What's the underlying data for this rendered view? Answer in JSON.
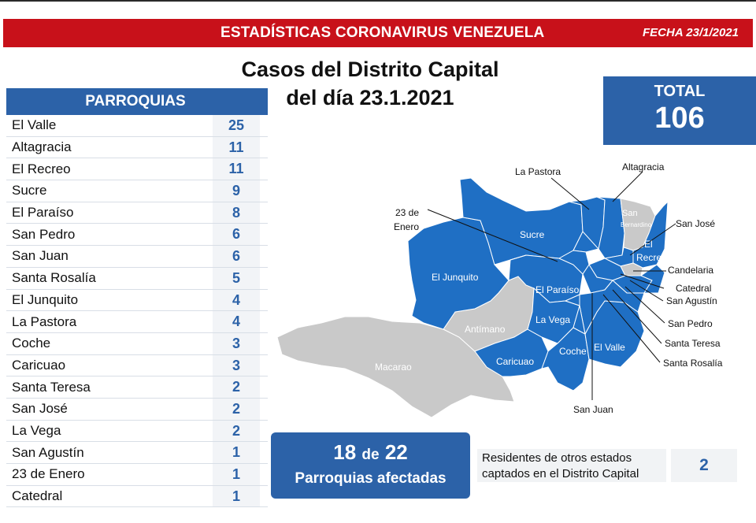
{
  "header": {
    "title": "ESTADÍSTICAS CORONAVIRUS VENEZUELA",
    "date": "FECHA 23/1/2021"
  },
  "subtitle": {
    "line1": "Casos del Distrito Capital",
    "line2": "del día 23.1.2021"
  },
  "total": {
    "label": "TOTAL",
    "value": "106"
  },
  "table": {
    "header": "PARROQUIAS",
    "rows": [
      {
        "name": "El Valle",
        "value": "25"
      },
      {
        "name": "Altagracia",
        "value": "11"
      },
      {
        "name": "El Recreo",
        "value": "11"
      },
      {
        "name": "Sucre",
        "value": "9"
      },
      {
        "name": "El Paraíso",
        "value": "8"
      },
      {
        "name": "San Pedro",
        "value": "6"
      },
      {
        "name": "San Juan",
        "value": "6"
      },
      {
        "name": "Santa Rosalía",
        "value": "5"
      },
      {
        "name": "El Junquito",
        "value": "4"
      },
      {
        "name": "La Pastora",
        "value": "4"
      },
      {
        "name": "Coche",
        "value": "3"
      },
      {
        "name": "Caricuao",
        "value": "3"
      },
      {
        "name": "Santa Teresa",
        "value": "2"
      },
      {
        "name": "San José",
        "value": "2"
      },
      {
        "name": "La Vega",
        "value": "2"
      },
      {
        "name": "San Agustín",
        "value": "1"
      },
      {
        "name": "23 de Enero",
        "value": "1"
      },
      {
        "name": "Catedral",
        "value": "1"
      }
    ]
  },
  "affected": {
    "count": "18",
    "of": "de",
    "total": "22",
    "label": "Parroquias afectadas"
  },
  "residents": {
    "line1": "Residentes de otros estados",
    "line2": "captados en el Distrito Capital",
    "value": "2"
  },
  "map": {
    "affected_color": "#1f6fc4",
    "unaffected_color": "#c9c9c9",
    "inner_labels": {
      "sucre": "Sucre",
      "junquito": "El Junquito",
      "paraiso": "El Paraíso",
      "vega": "La Vega",
      "antimano": "Antímano",
      "macarao": "Macarao",
      "caricuao": "Caricuao",
      "coche": "Coche",
      "valle": "El Valle",
      "recreo1": "El",
      "recreo2": "Recreo",
      "sanbern1": "San",
      "sanbern2": "Bernardino"
    },
    "callouts": {
      "pastora": "La Pastora",
      "altagracia": "Altagracia",
      "enero1": "23 de",
      "enero2": "Enero",
      "sanjose": "San José",
      "candelaria": "Candelaria",
      "catedral": "Catedral",
      "sanagustin": "San Agustín",
      "sanpedro": "San Pedro",
      "santateresa": "Santa Teresa",
      "santarosalia": "Santa Rosalía",
      "sanjuan": "San Juan"
    }
  }
}
